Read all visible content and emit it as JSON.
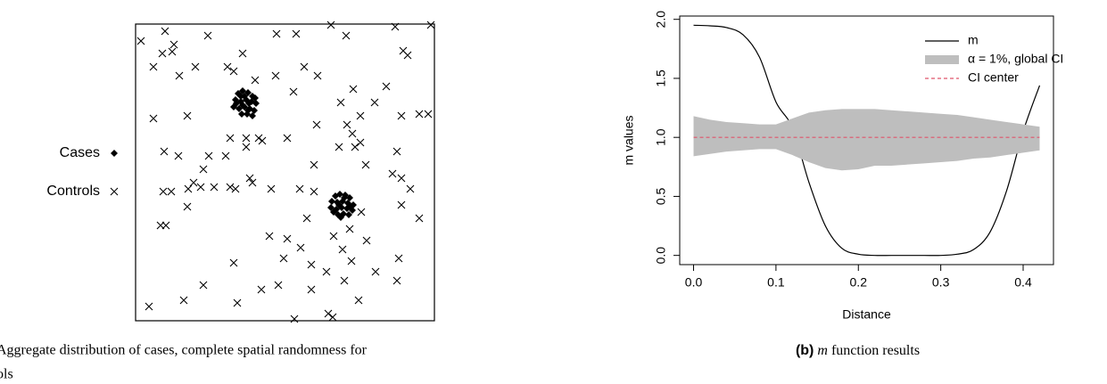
{
  "chart_data": [
    {
      "type": "scatter",
      "xlim": [
        0,
        335
      ],
      "ylim": [
        0,
        333
      ],
      "caption": [
        "Aggregate distribution of cases, complete spatial randomness for",
        "ols"
      ],
      "series": [
        {
          "name": "Cases",
          "shape": "diamond",
          "color": "#000000",
          "x": [
            115,
            120,
            126,
            131,
            112,
            118,
            124,
            130,
            135,
            110,
            116,
            122,
            128,
            133,
            119,
            125,
            131,
            122,
            113,
            127,
            120,
            134,
            118,
            126,
            224,
            229,
            235,
            240,
            220,
            226,
            232,
            238,
            244,
            219,
            225,
            231,
            237,
            243,
            227,
            233,
            239,
            230,
            234,
            222,
            241,
            228
          ],
          "values": [
            255,
            258,
            256,
            252,
            248,
            246,
            248,
            246,
            244,
            240,
            238,
            240,
            238,
            236,
            232,
            232,
            230,
            252,
            244,
            244,
            242,
            250,
            252,
            236,
            140,
            142,
            141,
            138,
            134,
            133,
            134,
            132,
            130,
            127,
            125,
            127,
            126,
            124,
            119,
            120,
            119,
            116,
            138,
            122,
            128,
            130
          ]
        },
        {
          "name": "Controls",
          "shape": "cross",
          "color": "#000000",
          "x": [
            6,
            33,
            43,
            30,
            81,
            20,
            41,
            67,
            49,
            103,
            110,
            120,
            158,
            180,
            219,
            236,
            291,
            331,
            300,
            305,
            189,
            157,
            134,
            204,
            244,
            281,
            230,
            177,
            20,
            58,
            268,
            252,
            298,
            318,
            328,
            82,
            106,
            124,
            138,
            142,
            124,
            101,
            32,
            48,
            170,
            203,
            237,
            243,
            252,
            246,
            228,
            293,
            258,
            200,
            76,
            65,
            59,
            73,
            88,
            31,
            40,
            106,
            112,
            128,
            131,
            152,
            184,
            200,
            288,
            298,
            308,
            58,
            253,
            298,
            318,
            192,
            28,
            34,
            150,
            170,
            222,
            240,
            232,
            259,
            269,
            295,
            166,
            197,
            214,
            242,
            110,
            185,
            76,
            141,
            160,
            197,
            234,
            293,
            54,
            15,
            114,
            250,
            178,
            216,
            221
          ],
          "values": [
            314,
            325,
            310,
            300,
            320,
            285,
            302,
            285,
            275,
            285,
            280,
            300,
            322,
            322,
            332,
            320,
            330,
            332,
            303,
            298,
            285,
            275,
            270,
            275,
            260,
            263,
            245,
            257,
            227,
            230,
            245,
            230,
            230,
            232,
            232,
            185,
            205,
            205,
            205,
            202,
            195,
            185,
            190,
            185,
            205,
            220,
            220,
            210,
            200,
            195,
            195,
            190,
            175,
            175,
            170,
            155,
            148,
            150,
            150,
            145,
            145,
            150,
            148,
            160,
            155,
            148,
            148,
            145,
            165,
            160,
            148,
            128,
            122,
            130,
            115,
            115,
            107,
            107,
            95,
            92,
            95,
            103,
            80,
            90,
            55,
            70,
            70,
            63,
            55,
            67,
            65,
            82,
            40,
            35,
            40,
            35,
            45,
            45,
            23,
            16,
            20,
            23,
            2,
            8,
            4
          ]
        }
      ]
    },
    {
      "type": "line",
      "xlabel": "Distance",
      "ylabel": "m values",
      "caption": {
        "label": "(b)",
        "symbol": "m",
        "text": "function results"
      },
      "xlim": [
        -0.0168,
        0.4368
      ],
      "ylim": [
        -0.078,
        2.028
      ],
      "xticks": [
        {
          "value": 0,
          "label": "0.0"
        },
        0.1,
        0.2,
        0.3,
        0.4
      ],
      "yticks": [
        {
          "value": 0,
          "label": "0.0"
        },
        0.5,
        {
          "value": 1,
          "label": "1.0"
        },
        1.5,
        {
          "value": 2,
          "label": "2.0"
        }
      ],
      "legend": "top-right",
      "x": [
        0,
        0.02,
        0.04,
        0.06,
        0.08,
        0.1,
        0.12,
        0.14,
        0.16,
        0.18,
        0.2,
        0.22,
        0.24,
        0.26,
        0.28,
        0.3,
        0.32,
        0.34,
        0.36,
        0.38,
        0.4,
        0.42
      ],
      "series": [
        {
          "name": "m",
          "kind": "line",
          "color": "#000000",
          "values": [
            1.95,
            1.945,
            1.93,
            1.87,
            1.68,
            1.3,
            1.08,
            0.62,
            0.25,
            0.06,
            0.01,
            0,
            0,
            0,
            0,
            0,
            0.01,
            0.05,
            0.2,
            0.55,
            1.05,
            1.44
          ]
        },
        {
          "name": "α = 1%, global CI",
          "kind": "band",
          "color": "#bebebe",
          "values": [
            0.84,
            0.86,
            0.88,
            0.89,
            0.9,
            0.9,
            0.85,
            0.79,
            0.74,
            0.72,
            0.73,
            0.76,
            0.76,
            0.77,
            0.78,
            0.79,
            0.8,
            0.82,
            0.83,
            0.85,
            0.87,
            0.89
          ],
          "upper": [
            1.18,
            1.15,
            1.13,
            1.12,
            1.11,
            1.11,
            1.16,
            1.21,
            1.23,
            1.24,
            1.24,
            1.24,
            1.23,
            1.22,
            1.21,
            1.2,
            1.19,
            1.17,
            1.15,
            1.13,
            1.11,
            1.09
          ]
        },
        {
          "name": "CI center",
          "kind": "dashed",
          "color": "#df536b",
          "values": [
            1,
            1,
            1,
            1,
            1,
            1,
            1,
            1,
            1,
            1,
            1,
            1,
            1,
            1,
            1,
            1,
            1,
            1,
            1,
            1,
            1,
            1
          ]
        }
      ]
    }
  ]
}
